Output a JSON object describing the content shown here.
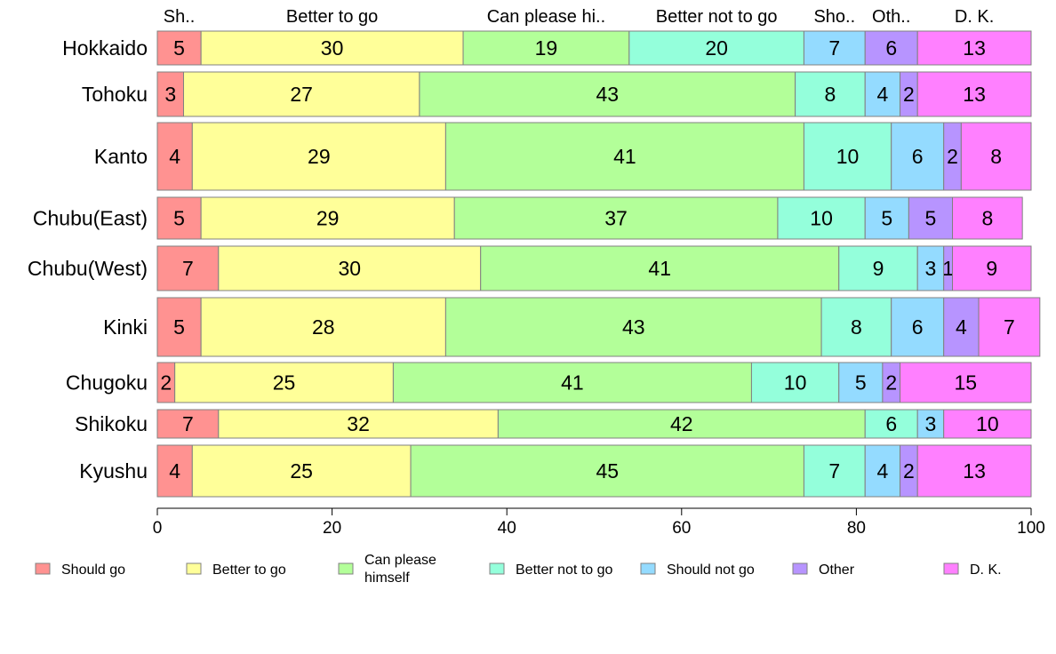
{
  "chart_data": {
    "type": "bar",
    "orientation": "horizontal",
    "stacked": true,
    "categories": [
      "Hokkaido",
      "Tohoku",
      "Kanto",
      "Chubu(East)",
      "Chubu(West)",
      "Kinki",
      "Chugoku",
      "Shikoku",
      "Kyushu"
    ],
    "series": [
      {
        "name": "Should go",
        "color": "#ff9291",
        "values": [
          5,
          3,
          4,
          5,
          7,
          5,
          2,
          7,
          4
        ]
      },
      {
        "name": "Better to go",
        "color": "#ffff99",
        "values": [
          30,
          27,
          29,
          29,
          30,
          28,
          25,
          32,
          25
        ]
      },
      {
        "name": "Can please himself",
        "color": "#b3ff99",
        "values": [
          19,
          43,
          41,
          37,
          41,
          43,
          41,
          42,
          45
        ]
      },
      {
        "name": "Better not to go",
        "color": "#94ffdb",
        "values": [
          20,
          8,
          10,
          10,
          9,
          8,
          10,
          6,
          7
        ]
      },
      {
        "name": "Should not go",
        "color": "#94dbff",
        "values": [
          7,
          4,
          6,
          5,
          3,
          6,
          5,
          3,
          4
        ]
      },
      {
        "name": "Other",
        "color": "#b794ff",
        "values": [
          6,
          2,
          2,
          5,
          1,
          4,
          2,
          0,
          2
        ]
      },
      {
        "name": "D. K.",
        "color": "#ff80ff",
        "values": [
          13,
          13,
          8,
          8,
          9,
          7,
          15,
          10,
          13
        ]
      }
    ],
    "column_labels": [
      "Sh..",
      "Better to go",
      "Can please hi..",
      "Better not to go",
      "Sho..",
      "Oth..",
      "D. K."
    ],
    "legend_labels": [
      "Should go",
      "Better to go",
      "Can please\nhimself",
      "Better not to go",
      "Should not go",
      "Other",
      "D. K."
    ],
    "xlim": [
      0,
      100
    ],
    "xticks": [
      0,
      20,
      40,
      60,
      80,
      100
    ],
    "title": "",
    "xlabel": "",
    "ylabel": "",
    "legend_position": "bottom",
    "grid": false
  }
}
